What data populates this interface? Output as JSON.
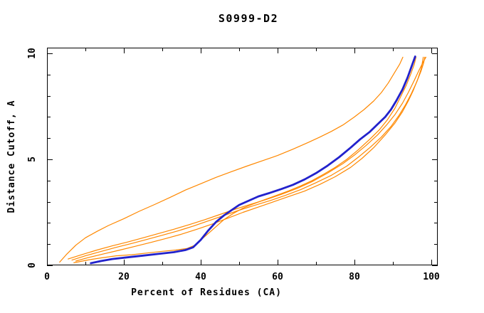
{
  "page": {
    "background": "#ffffff"
  },
  "chart_data": {
    "type": "line",
    "title": "S0999-D2",
    "xlabel": "Percent of Residues (CA)",
    "ylabel": "Distance Cutoff, A",
    "xlim": [
      0,
      100
    ],
    "ylim": [
      0,
      10
    ],
    "x_major_ticks": [
      0,
      20,
      40,
      60,
      80,
      100
    ],
    "x_tick_labels": [
      "0",
      "20",
      "40",
      "60",
      "80",
      "100"
    ],
    "x_minor_ticks": [
      10,
      30,
      50,
      70,
      90
    ],
    "y_major_ticks": [
      0,
      5,
      10
    ],
    "y_tick_labels": [
      "0",
      "5",
      "10"
    ],
    "y_minor_ticks": [
      1,
      2,
      3,
      4,
      6,
      7,
      8,
      9
    ],
    "grid": false,
    "legend": "none",
    "colors": {
      "main_curve": "#2222cc",
      "comparison_curves": "#ff8800",
      "axis": "#000000"
    },
    "series": [
      {
        "name": "orange-outlier-curve",
        "color": "#ff8800",
        "width": 1.2,
        "points": [
          [
            3.3,
            0.15
          ],
          [
            5,
            0.5
          ],
          [
            7.5,
            0.95
          ],
          [
            10,
            1.3
          ],
          [
            13,
            1.6
          ],
          [
            16,
            1.88
          ],
          [
            20,
            2.2
          ],
          [
            24,
            2.55
          ],
          [
            28,
            2.87
          ],
          [
            32,
            3.2
          ],
          [
            36,
            3.55
          ],
          [
            40,
            3.85
          ],
          [
            44,
            4.15
          ],
          [
            48,
            4.42
          ],
          [
            52,
            4.68
          ],
          [
            56,
            4.93
          ],
          [
            60,
            5.18
          ],
          [
            64,
            5.48
          ],
          [
            68,
            5.8
          ],
          [
            71,
            6.05
          ],
          [
            74,
            6.32
          ],
          [
            77,
            6.62
          ],
          [
            80,
            7.0
          ],
          [
            82.5,
            7.35
          ],
          [
            85,
            7.75
          ],
          [
            87,
            8.15
          ],
          [
            88.8,
            8.6
          ],
          [
            90.3,
            9.05
          ],
          [
            91.8,
            9.5
          ],
          [
            92.6,
            9.82
          ]
        ]
      },
      {
        "name": "orange-curve-2",
        "color": "#ff8800",
        "width": 1.2,
        "points": [
          [
            5.5,
            0.3
          ],
          [
            9,
            0.5
          ],
          [
            13,
            0.72
          ],
          [
            17,
            0.92
          ],
          [
            21,
            1.1
          ],
          [
            25,
            1.3
          ],
          [
            29,
            1.5
          ],
          [
            33,
            1.7
          ],
          [
            37,
            1.92
          ],
          [
            41,
            2.15
          ],
          [
            45,
            2.4
          ],
          [
            49,
            2.65
          ],
          [
            53,
            2.88
          ],
          [
            57,
            3.1
          ],
          [
            61,
            3.35
          ],
          [
            65,
            3.62
          ],
          [
            69,
            3.95
          ],
          [
            73,
            4.35
          ],
          [
            77,
            4.8
          ],
          [
            80,
            5.2
          ],
          [
            83,
            5.65
          ],
          [
            86,
            6.15
          ],
          [
            88.5,
            6.65
          ],
          [
            90.5,
            7.1
          ],
          [
            92.5,
            7.65
          ],
          [
            94,
            8.15
          ],
          [
            95.5,
            8.7
          ],
          [
            96.8,
            9.2
          ],
          [
            97.9,
            9.6
          ],
          [
            98.6,
            9.82
          ]
        ]
      },
      {
        "name": "orange-curve-3",
        "color": "#ff8800",
        "width": 1.2,
        "points": [
          [
            6.5,
            0.25
          ],
          [
            10,
            0.45
          ],
          [
            14,
            0.65
          ],
          [
            18,
            0.85
          ],
          [
            22,
            1.03
          ],
          [
            26,
            1.22
          ],
          [
            30,
            1.42
          ],
          [
            34,
            1.62
          ],
          [
            38,
            1.85
          ],
          [
            42,
            2.1
          ],
          [
            46,
            2.35
          ],
          [
            50,
            2.6
          ],
          [
            54,
            2.83
          ],
          [
            58,
            3.05
          ],
          [
            62,
            3.3
          ],
          [
            66,
            3.57
          ],
          [
            70,
            3.9
          ],
          [
            74,
            4.25
          ],
          [
            78,
            4.68
          ],
          [
            81,
            5.1
          ],
          [
            84,
            5.55
          ],
          [
            87,
            6.05
          ],
          [
            89.5,
            6.55
          ],
          [
            91.5,
            7.05
          ],
          [
            93.2,
            7.55
          ],
          [
            94.8,
            8.1
          ],
          [
            96.2,
            8.65
          ],
          [
            97.3,
            9.15
          ],
          [
            98,
            9.55
          ],
          [
            98.3,
            9.82
          ]
        ]
      },
      {
        "name": "orange-curve-4",
        "color": "#ff8800",
        "width": 1.2,
        "points": [
          [
            7.5,
            0.2
          ],
          [
            11,
            0.38
          ],
          [
            15,
            0.55
          ],
          [
            19,
            0.72
          ],
          [
            23,
            0.9
          ],
          [
            27,
            1.08
          ],
          [
            31,
            1.27
          ],
          [
            35,
            1.47
          ],
          [
            39,
            1.7
          ],
          [
            43,
            1.95
          ],
          [
            47,
            2.22
          ],
          [
            51,
            2.5
          ],
          [
            55,
            2.75
          ],
          [
            59,
            3.0
          ],
          [
            63,
            3.25
          ],
          [
            67,
            3.5
          ],
          [
            71,
            3.82
          ],
          [
            75,
            4.18
          ],
          [
            79,
            4.62
          ],
          [
            82,
            5.05
          ],
          [
            85,
            5.55
          ],
          [
            88,
            6.15
          ],
          [
            90.5,
            6.7
          ],
          [
            92.5,
            7.25
          ],
          [
            94,
            7.75
          ],
          [
            95.3,
            8.25
          ],
          [
            96.5,
            8.8
          ],
          [
            97.4,
            9.3
          ],
          [
            97.9,
            9.82
          ]
        ]
      },
      {
        "name": "orange-curve-5",
        "color": "#ff8800",
        "width": 1.2,
        "points": [
          [
            7,
            0.12
          ],
          [
            10.5,
            0.25
          ],
          [
            14,
            0.35
          ],
          [
            18,
            0.45
          ],
          [
            22,
            0.5
          ],
          [
            26,
            0.58
          ],
          [
            30,
            0.66
          ],
          [
            33.5,
            0.72
          ],
          [
            36.5,
            0.8
          ],
          [
            38.5,
            0.95
          ],
          [
            41,
            1.35
          ],
          [
            43.5,
            1.75
          ],
          [
            46,
            2.15
          ],
          [
            48.5,
            2.45
          ],
          [
            51,
            2.7
          ],
          [
            54,
            2.92
          ],
          [
            57,
            3.12
          ],
          [
            60,
            3.32
          ],
          [
            63,
            3.52
          ],
          [
            66,
            3.75
          ],
          [
            69,
            4.0
          ],
          [
            72,
            4.3
          ],
          [
            75,
            4.62
          ],
          [
            78,
            5.0
          ],
          [
            81,
            5.45
          ],
          [
            84,
            5.95
          ],
          [
            86.5,
            6.4
          ],
          [
            88.5,
            6.85
          ],
          [
            90.5,
            7.4
          ],
          [
            92,
            7.95
          ],
          [
            93.5,
            8.5
          ],
          [
            94.7,
            9.05
          ],
          [
            95.6,
            9.5
          ],
          [
            96,
            9.82
          ]
        ]
      },
      {
        "name": "blue-main-curve",
        "color": "#2222cc",
        "width": 2.8,
        "points": [
          [
            11.4,
            0.1
          ],
          [
            14,
            0.2
          ],
          [
            17,
            0.3
          ],
          [
            21,
            0.38
          ],
          [
            25,
            0.46
          ],
          [
            29,
            0.54
          ],
          [
            33,
            0.62
          ],
          [
            36,
            0.72
          ],
          [
            38,
            0.85
          ],
          [
            40,
            1.2
          ],
          [
            42,
            1.65
          ],
          [
            44,
            2.05
          ],
          [
            46,
            2.35
          ],
          [
            48,
            2.6
          ],
          [
            50,
            2.85
          ],
          [
            52.5,
            3.05
          ],
          [
            55,
            3.25
          ],
          [
            58,
            3.42
          ],
          [
            61,
            3.6
          ],
          [
            64,
            3.8
          ],
          [
            67,
            4.05
          ],
          [
            70,
            4.35
          ],
          [
            73,
            4.7
          ],
          [
            76,
            5.1
          ],
          [
            79,
            5.55
          ],
          [
            81.5,
            5.95
          ],
          [
            84,
            6.3
          ],
          [
            86,
            6.65
          ],
          [
            88,
            7.0
          ],
          [
            89.5,
            7.35
          ],
          [
            91,
            7.8
          ],
          [
            92.5,
            8.3
          ],
          [
            93.8,
            8.85
          ],
          [
            94.8,
            9.35
          ],
          [
            95.5,
            9.7
          ],
          [
            95.8,
            9.85
          ]
        ]
      }
    ]
  }
}
